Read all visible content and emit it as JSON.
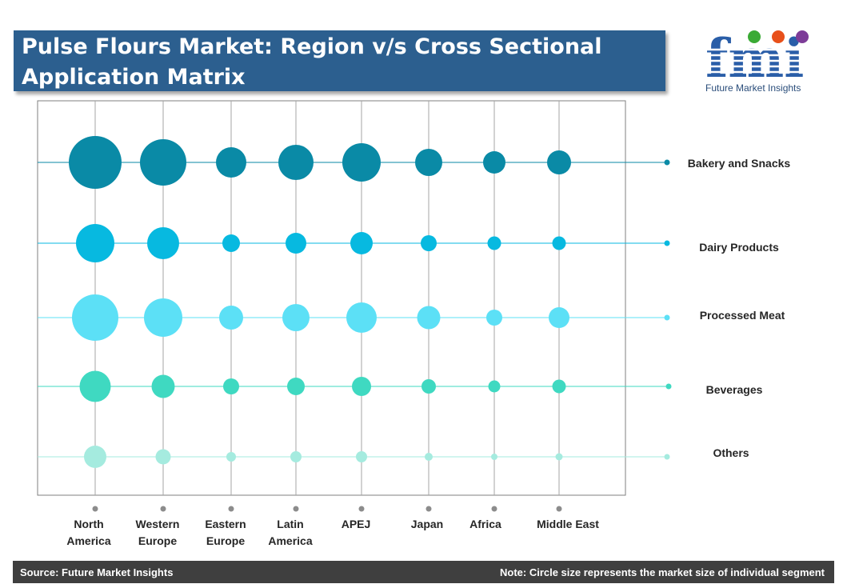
{
  "header": {
    "title": "Pulse Flours Market: Region v/s Cross Sectional Application Matrix"
  },
  "logo": {
    "letters": "fmi",
    "tagline": "Future Market Insights"
  },
  "footer": {
    "source": "Source: Future Market Insights",
    "note": "Note: Circle size represents the market size of individual segment"
  },
  "chart_data": {
    "type": "scatter",
    "subtype": "bubble-matrix",
    "title": "Pulse Flours Market: Region v/s Cross Sectional Application Matrix",
    "x_categories": [
      "North\nAmerica",
      "Western\nEurope",
      "Eastern\nEurope",
      "Latin\nAmerica",
      "APEJ",
      "Japan",
      "Africa",
      "Middle East"
    ],
    "series": [
      {
        "name": "Bakery and Snacks",
        "color": "#0a8aa6",
        "values": [
          33,
          29,
          19,
          22,
          24,
          17,
          14,
          15
        ]
      },
      {
        "name": "Dairy Products",
        "color": "#07b9e0",
        "values": [
          24,
          20,
          11,
          13,
          14,
          10,
          8.5,
          8.5
        ]
      },
      {
        "name": "Processed Meat",
        "color": "#5ce0f6",
        "values": [
          29,
          24,
          15,
          17,
          19,
          14.5,
          10,
          13
        ]
      },
      {
        "name": "Beverages",
        "color": "#3fd9c1",
        "values": [
          19.5,
          14.5,
          10,
          11,
          12,
          9,
          7.5,
          8.5
        ]
      },
      {
        "name": "Others",
        "color": "#a5ebdf",
        "values": [
          14,
          9.5,
          6,
          7,
          7,
          5,
          4,
          4.5
        ]
      }
    ],
    "size_meaning": "market size of individual segment",
    "grid": true,
    "legend": "right"
  }
}
